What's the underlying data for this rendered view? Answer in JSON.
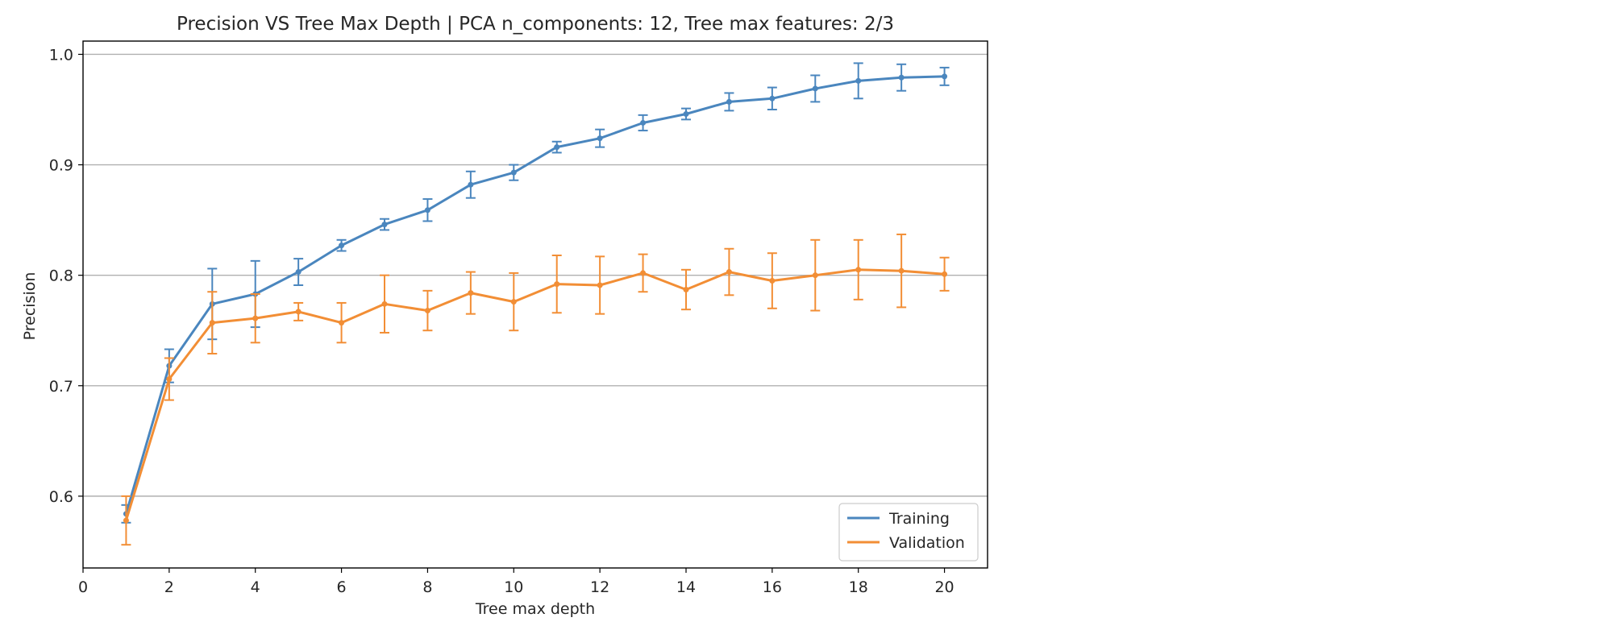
{
  "chart_data": {
    "type": "line",
    "title": "Precision VS Tree Max Depth | PCA n_components: 12, Tree max features: 2/3",
    "xlabel": "Tree max depth",
    "ylabel": "Precision",
    "xlim": [
      0,
      21
    ],
    "ylim": [
      0.535,
      1.012
    ],
    "xticks": [
      0,
      2,
      4,
      6,
      8,
      10,
      12,
      14,
      16,
      18,
      20
    ],
    "yticks": [
      0.6,
      0.7,
      0.8,
      0.9,
      1.0
    ],
    "ytick_labels": [
      "0.6",
      "0.7",
      "0.8",
      "0.9",
      "1.0"
    ],
    "grid": "horizontal",
    "legend_position": "bottom-right",
    "x": [
      1,
      2,
      3,
      4,
      5,
      6,
      7,
      8,
      9,
      10,
      11,
      12,
      13,
      14,
      15,
      16,
      17,
      18,
      19,
      20
    ],
    "series": [
      {
        "name": "Training",
        "color": "#4a86be",
        "values": [
          0.584,
          0.718,
          0.774,
          0.783,
          0.803,
          0.827,
          0.846,
          0.859,
          0.882,
          0.893,
          0.916,
          0.924,
          0.938,
          0.946,
          0.957,
          0.96,
          0.969,
          0.976,
          0.979,
          0.98
        ],
        "errors": [
          0.008,
          0.015,
          0.032,
          0.03,
          0.012,
          0.005,
          0.005,
          0.01,
          0.012,
          0.007,
          0.005,
          0.008,
          0.007,
          0.005,
          0.008,
          0.01,
          0.012,
          0.016,
          0.012,
          0.008
        ]
      },
      {
        "name": "Validation",
        "color": "#f28e35",
        "values": [
          0.578,
          0.706,
          0.757,
          0.761,
          0.767,
          0.757,
          0.774,
          0.768,
          0.784,
          0.776,
          0.792,
          0.791,
          0.802,
          0.787,
          0.803,
          0.795,
          0.8,
          0.805,
          0.804,
          0.801
        ],
        "errors": [
          0.022,
          0.019,
          0.028,
          0.022,
          0.008,
          0.018,
          0.026,
          0.018,
          0.019,
          0.026,
          0.026,
          0.026,
          0.017,
          0.018,
          0.021,
          0.025,
          0.032,
          0.027,
          0.033,
          0.015
        ]
      }
    ]
  }
}
